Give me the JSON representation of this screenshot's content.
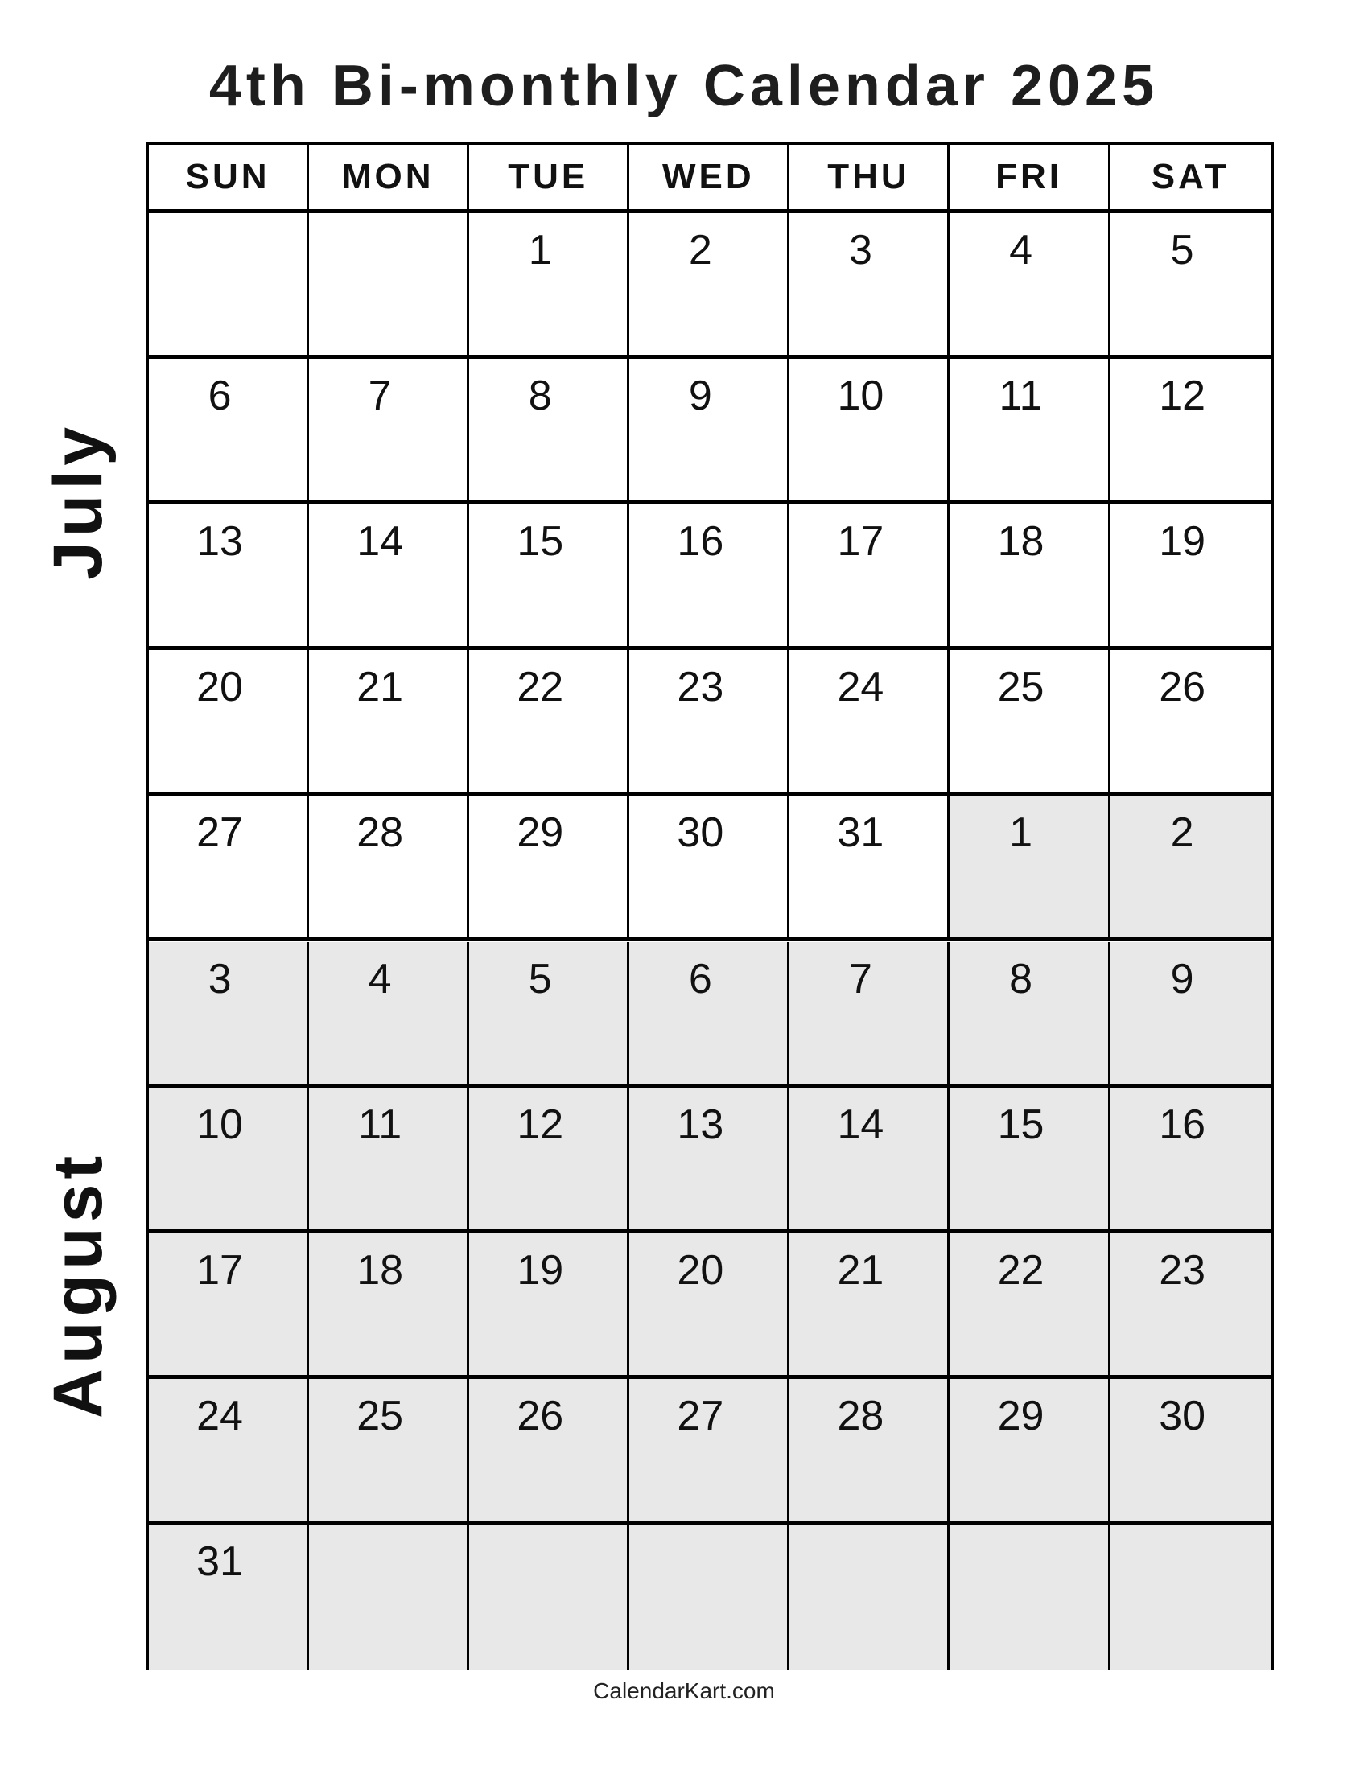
{
  "title": "4th Bi-monthly Calendar 2025",
  "weekdays": [
    "SUN",
    "MON",
    "TUE",
    "WED",
    "THU",
    "FRI",
    "SAT"
  ],
  "months": [
    {
      "label": "July"
    },
    {
      "label": "August"
    }
  ],
  "weeks": [
    [
      {
        "d": "",
        "m": 0
      },
      {
        "d": "",
        "m": 0
      },
      {
        "d": "1",
        "m": 0
      },
      {
        "d": "2",
        "m": 0
      },
      {
        "d": "3",
        "m": 0
      },
      {
        "d": "4",
        "m": 0
      },
      {
        "d": "5",
        "m": 0
      }
    ],
    [
      {
        "d": "6",
        "m": 0
      },
      {
        "d": "7",
        "m": 0
      },
      {
        "d": "8",
        "m": 0
      },
      {
        "d": "9",
        "m": 0
      },
      {
        "d": "10",
        "m": 0
      },
      {
        "d": "11",
        "m": 0
      },
      {
        "d": "12",
        "m": 0
      }
    ],
    [
      {
        "d": "13",
        "m": 0
      },
      {
        "d": "14",
        "m": 0
      },
      {
        "d": "15",
        "m": 0
      },
      {
        "d": "16",
        "m": 0
      },
      {
        "d": "17",
        "m": 0
      },
      {
        "d": "18",
        "m": 0
      },
      {
        "d": "19",
        "m": 0
      }
    ],
    [
      {
        "d": "20",
        "m": 0
      },
      {
        "d": "21",
        "m": 0
      },
      {
        "d": "22",
        "m": 0
      },
      {
        "d": "23",
        "m": 0
      },
      {
        "d": "24",
        "m": 0
      },
      {
        "d": "25",
        "m": 0
      },
      {
        "d": "26",
        "m": 0
      }
    ],
    [
      {
        "d": "27",
        "m": 0
      },
      {
        "d": "28",
        "m": 0
      },
      {
        "d": "29",
        "m": 0
      },
      {
        "d": "30",
        "m": 0
      },
      {
        "d": "31",
        "m": 0
      },
      {
        "d": "1",
        "m": 1
      },
      {
        "d": "2",
        "m": 1
      }
    ],
    [
      {
        "d": "3",
        "m": 1
      },
      {
        "d": "4",
        "m": 1
      },
      {
        "d": "5",
        "m": 1
      },
      {
        "d": "6",
        "m": 1
      },
      {
        "d": "7",
        "m": 1
      },
      {
        "d": "8",
        "m": 1
      },
      {
        "d": "9",
        "m": 1
      }
    ],
    [
      {
        "d": "10",
        "m": 1
      },
      {
        "d": "11",
        "m": 1
      },
      {
        "d": "12",
        "m": 1
      },
      {
        "d": "13",
        "m": 1
      },
      {
        "d": "14",
        "m": 1
      },
      {
        "d": "15",
        "m": 1
      },
      {
        "d": "16",
        "m": 1
      }
    ],
    [
      {
        "d": "17",
        "m": 1
      },
      {
        "d": "18",
        "m": 1
      },
      {
        "d": "19",
        "m": 1
      },
      {
        "d": "20",
        "m": 1
      },
      {
        "d": "21",
        "m": 1
      },
      {
        "d": "22",
        "m": 1
      },
      {
        "d": "23",
        "m": 1
      }
    ],
    [
      {
        "d": "24",
        "m": 1
      },
      {
        "d": "25",
        "m": 1
      },
      {
        "d": "26",
        "m": 1
      },
      {
        "d": "27",
        "m": 1
      },
      {
        "d": "28",
        "m": 1
      },
      {
        "d": "29",
        "m": 1
      },
      {
        "d": "30",
        "m": 1
      }
    ],
    [
      {
        "d": "31",
        "m": 1
      },
      {
        "d": "",
        "m": 1
      },
      {
        "d": "",
        "m": 1
      },
      {
        "d": "",
        "m": 1
      },
      {
        "d": "",
        "m": 1
      },
      {
        "d": "",
        "m": 1
      },
      {
        "d": "",
        "m": 1
      }
    ]
  ],
  "colors": {
    "second_month_fill": "#e8e8e8",
    "grid": "#000000"
  },
  "footer": "CalendarKart.com"
}
